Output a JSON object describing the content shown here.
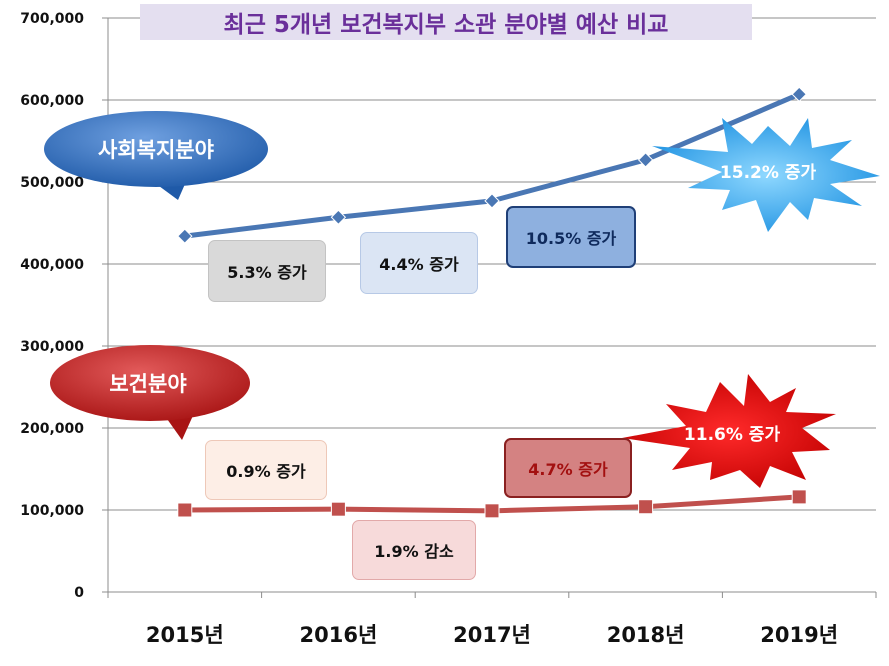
{
  "chart_data": {
    "type": "line",
    "title": "최근 5개년 보건복지부 소관 분야별 예산 비교",
    "categories": [
      "2015년",
      "2016년",
      "2017년",
      "2018년",
      "2019년"
    ],
    "ylim": [
      0,
      700000
    ],
    "yticks": [
      "0",
      "100,000",
      "200,000",
      "300,000",
      "400,000",
      "500,000",
      "600,000",
      "700,000"
    ],
    "grid": true,
    "series": [
      {
        "name": "사회복지분야",
        "values": [
          434000,
          457000,
          477000,
          527000,
          607000
        ],
        "color": "#4a77b4"
      },
      {
        "name": "보건분야",
        "values": [
          100000,
          101000,
          99000,
          104000,
          116000
        ],
        "color": "#c0504d"
      }
    ],
    "annotations": {
      "welfare": [
        "5.3% 증가",
        "4.4% 증가",
        "10.5% 증가",
        "15.2% 증가"
      ],
      "health": [
        "0.9% 증가",
        "1.9% 감소",
        "4.7% 증가",
        "11.6% 증가"
      ]
    }
  }
}
